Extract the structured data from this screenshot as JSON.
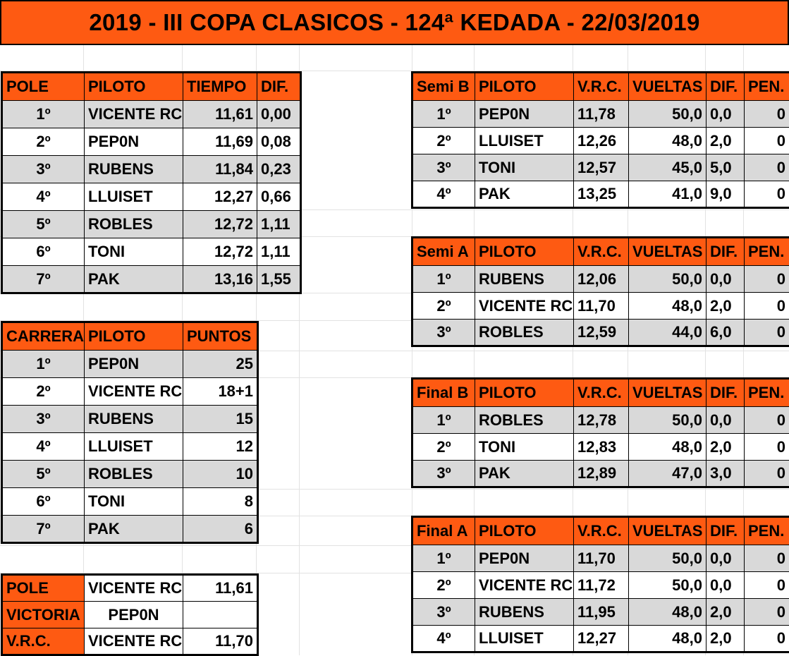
{
  "title": "2019 - III COPA CLASICOS - 124ª KEDADA - 22/03/2019",
  "colors": {
    "header": "#fe5a12",
    "row_alt": "#d9d9d9"
  },
  "pole_table": {
    "headers": [
      "POLE",
      "PILOTO",
      "TIEMPO",
      "DIF."
    ],
    "rows": [
      {
        "pos": "1º",
        "piloto": "VICENTE RC",
        "tiempo": "11,61",
        "dif": "0,00"
      },
      {
        "pos": "2º",
        "piloto": "PEP0N",
        "tiempo": "11,69",
        "dif": "0,08"
      },
      {
        "pos": "3º",
        "piloto": "RUBENS",
        "tiempo": "11,84",
        "dif": "0,23"
      },
      {
        "pos": "4º",
        "piloto": "LLUISET",
        "tiempo": "12,27",
        "dif": "0,66"
      },
      {
        "pos": "5º",
        "piloto": "ROBLES",
        "tiempo": "12,72",
        "dif": "1,11"
      },
      {
        "pos": "6º",
        "piloto": "TONI",
        "tiempo": "12,72",
        "dif": "1,11"
      },
      {
        "pos": "7º",
        "piloto": "PAK",
        "tiempo": "13,16",
        "dif": "1,55"
      }
    ]
  },
  "carrera_table": {
    "headers": [
      "CARRERA",
      "PILOTO",
      "PUNTOS"
    ],
    "rows": [
      {
        "pos": "1º",
        "piloto": "PEP0N",
        "puntos": "25"
      },
      {
        "pos": "2º",
        "piloto": "VICENTE RC",
        "puntos": "18+1"
      },
      {
        "pos": "3º",
        "piloto": "RUBENS",
        "puntos": "15"
      },
      {
        "pos": "4º",
        "piloto": "LLUISET",
        "puntos": "12"
      },
      {
        "pos": "5º",
        "piloto": "ROBLES",
        "puntos": "10"
      },
      {
        "pos": "6º",
        "piloto": "TONI",
        "puntos": "8"
      },
      {
        "pos": "7º",
        "piloto": "PAK",
        "puntos": "6"
      }
    ]
  },
  "summary": {
    "pole_label": "POLE",
    "pole_piloto": "VICENTE RC",
    "pole_tiempo": "11,61",
    "victoria_label": "VICTORIA",
    "victoria_piloto": "PEP0N",
    "vrc_label": "V.R.C.",
    "vrc_piloto": "VICENTE RC",
    "vrc_tiempo": "11,70"
  },
  "semi_b": {
    "headers": [
      "Semi B",
      "PILOTO",
      "V.R.C.",
      "VUELTAS",
      "DIF.",
      "PEN."
    ],
    "rows": [
      {
        "pos": "1º",
        "piloto": "PEP0N",
        "vrc": "11,78",
        "vueltas": "50,0",
        "dif": "0,0",
        "pen": "0"
      },
      {
        "pos": "2º",
        "piloto": "LLUISET",
        "vrc": "12,26",
        "vueltas": "48,0",
        "dif": "2,0",
        "pen": "0"
      },
      {
        "pos": "3º",
        "piloto": "TONI",
        "vrc": "12,57",
        "vueltas": "45,0",
        "dif": "5,0",
        "pen": "0"
      },
      {
        "pos": "4º",
        "piloto": "PAK",
        "vrc": "13,25",
        "vueltas": "41,0",
        "dif": "9,0",
        "pen": "0"
      }
    ]
  },
  "semi_a": {
    "headers": [
      "Semi A",
      "PILOTO",
      "V.R.C.",
      "VUELTAS",
      "DIF.",
      "PEN."
    ],
    "rows": [
      {
        "pos": "1º",
        "piloto": "RUBENS",
        "vrc": "12,06",
        "vueltas": "50,0",
        "dif": "0,0",
        "pen": "0"
      },
      {
        "pos": "2º",
        "piloto": "VICENTE RC",
        "vrc": "11,70",
        "vueltas": "48,0",
        "dif": "2,0",
        "pen": "0"
      },
      {
        "pos": "3º",
        "piloto": "ROBLES",
        "vrc": "12,59",
        "vueltas": "44,0",
        "dif": "6,0",
        "pen": "0"
      }
    ]
  },
  "final_b": {
    "headers": [
      "Final B",
      "PILOTO",
      "V.R.C.",
      "VUELTAS",
      "DIF.",
      "PEN."
    ],
    "rows": [
      {
        "pos": "1º",
        "piloto": "ROBLES",
        "vrc": "12,78",
        "vueltas": "50,0",
        "dif": "0,0",
        "pen": "0"
      },
      {
        "pos": "2º",
        "piloto": "TONI",
        "vrc": "12,83",
        "vueltas": "48,0",
        "dif": "2,0",
        "pen": "0"
      },
      {
        "pos": "3º",
        "piloto": "PAK",
        "vrc": "12,89",
        "vueltas": "47,0",
        "dif": "3,0",
        "pen": "0"
      }
    ]
  },
  "final_a": {
    "headers": [
      "Final A",
      "PILOTO",
      "V.R.C.",
      "VUELTAS",
      "DIF.",
      "PEN."
    ],
    "rows": [
      {
        "pos": "1º",
        "piloto": "PEP0N",
        "vrc": "11,70",
        "vueltas": "50,0",
        "dif": "0,0",
        "pen": "0"
      },
      {
        "pos": "2º",
        "piloto": "VICENTE RC",
        "vrc": "11,72",
        "vueltas": "50,0",
        "dif": "0,0",
        "pen": "0"
      },
      {
        "pos": "3º",
        "piloto": "RUBENS",
        "vrc": "11,95",
        "vueltas": "48,0",
        "dif": "2,0",
        "pen": "0"
      },
      {
        "pos": "4º",
        "piloto": "LLUISET",
        "vrc": "12,27",
        "vueltas": "48,0",
        "dif": "2,0",
        "pen": "0"
      }
    ]
  }
}
